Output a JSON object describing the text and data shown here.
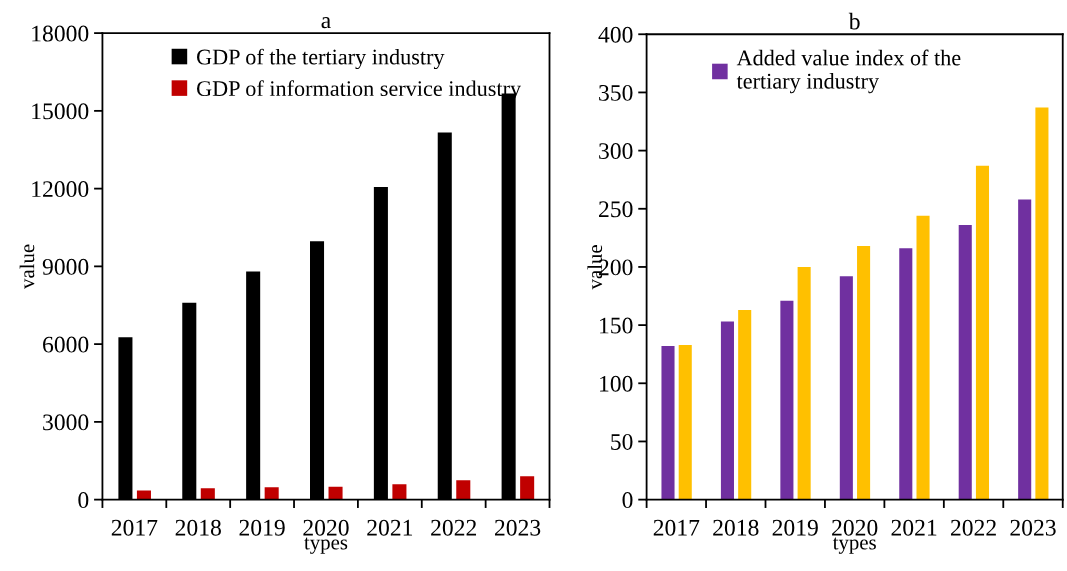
{
  "chart_data": [
    {
      "type": "bar",
      "title": "a",
      "xlabel": "types",
      "ylabel": "value",
      "categories": [
        "2017",
        "2018",
        "2019",
        "2020",
        "2021",
        "2022",
        "2023"
      ],
      "series": [
        {
          "name": "GDP of the tertiary industry",
          "color": "#000000",
          "values": [
            6270,
            7600,
            8800,
            9970,
            12060,
            14170,
            15670
          ]
        },
        {
          "name": "GDP of information service industry",
          "color": "#c00000",
          "values": [
            350,
            440,
            480,
            500,
            590,
            750,
            900
          ]
        }
      ],
      "ylim": [
        0,
        18000
      ],
      "yticks": [
        0,
        3000,
        6000,
        9000,
        12000,
        15000,
        18000
      ],
      "grid": false,
      "legend": "top left"
    },
    {
      "type": "bar",
      "title": "b",
      "xlabel": "types",
      "ylabel": "value",
      "categories": [
        "2017",
        "2018",
        "2019",
        "2020",
        "2021",
        "2022",
        "2023"
      ],
      "series": [
        {
          "name": "Added value index of the\ntertiary industry",
          "color": "#7030a0",
          "values": [
            132,
            153,
            171,
            192,
            216,
            236,
            258
          ]
        },
        {
          "color": "#ffc000",
          "values": [
            133,
            163,
            200,
            218,
            244,
            287,
            337
          ]
        }
      ],
      "ylim": [
        0,
        400
      ],
      "yticks": [
        0,
        50,
        100,
        150,
        200,
        250,
        300,
        350,
        400
      ],
      "grid": false,
      "legend": "top left"
    }
  ]
}
